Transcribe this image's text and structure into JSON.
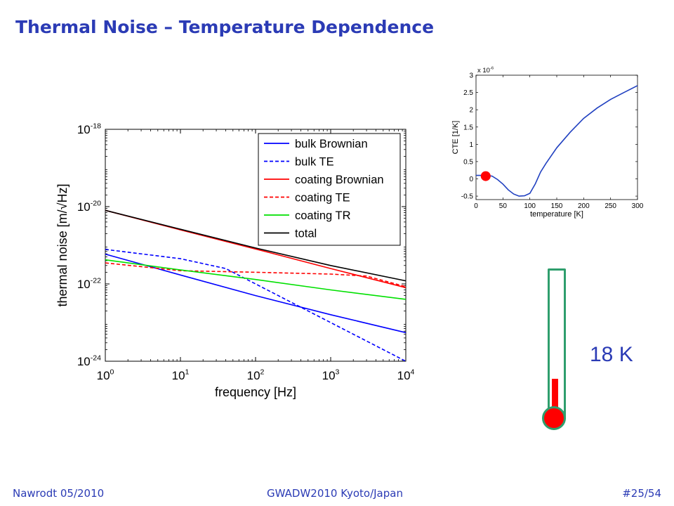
{
  "slide": {
    "title": "Thermal Noise – Temperature Dependence",
    "temperature_label": "18 K",
    "thermometer_level": 0.25,
    "footer": {
      "left": "Nawrodt 05/2010",
      "center": "GWADW2010 Kyoto/Japan",
      "right": "#25/54"
    }
  },
  "chart_data": [
    {
      "type": "line",
      "xlabel": "frequency [Hz]",
      "ylabel": "thermal noise [m/√Hz]",
      "xscale": "log",
      "yscale": "log",
      "xlim": [
        1,
        10000
      ],
      "ylim": [
        1e-24,
        1e-18
      ],
      "x_ticks": [
        {
          "base": "10",
          "exp": "0",
          "value": 1
        },
        {
          "base": "10",
          "exp": "1",
          "value": 10
        },
        {
          "base": "10",
          "exp": "2",
          "value": 100
        },
        {
          "base": "10",
          "exp": "3",
          "value": 1000
        },
        {
          "base": "10",
          "exp": "4",
          "value": 10000
        }
      ],
      "y_ticks": [
        {
          "base": "10",
          "exp": "-18",
          "value": 1e-18
        },
        {
          "base": "10",
          "exp": "-20",
          "value": 1e-20
        },
        {
          "base": "10",
          "exp": "-22",
          "value": 1e-22
        },
        {
          "base": "10",
          "exp": "-24",
          "value": 1e-24
        }
      ],
      "legend_position": "top-right",
      "grid": false,
      "series": [
        {
          "name": "bulk Brownian",
          "color": "#0000ff",
          "dash": "solid",
          "x": [
            1,
            10,
            100,
            1000,
            10000
          ],
          "y": [
            5.9e-22,
            1.7e-22,
            5e-23,
            1.6e-23,
            5.5e-24
          ]
        },
        {
          "name": "bulk TE",
          "color": "#0000ff",
          "dash": "dashed",
          "x": [
            1,
            10,
            40,
            100,
            1000,
            10000
          ],
          "y": [
            7.8e-22,
            4.5e-22,
            2.5e-22,
            1e-22,
            1e-23,
            1e-24
          ]
        },
        {
          "name": "coating Brownian",
          "color": "#ff0000",
          "dash": "solid",
          "x": [
            1,
            10,
            100,
            1000,
            10000
          ],
          "y": [
            8e-21,
            2.5e-21,
            8e-22,
            2.5e-22,
            8e-23
          ]
        },
        {
          "name": "coating TE",
          "color": "#ff0000",
          "dash": "dashed",
          "x": [
            1,
            10,
            100,
            1000,
            3000,
            10000
          ],
          "y": [
            3.5e-22,
            2.2e-22,
            2e-22,
            1.8e-22,
            1.6e-22,
            8.5e-23
          ]
        },
        {
          "name": "coating TR",
          "color": "#00e000",
          "dash": "solid",
          "x": [
            1,
            10,
            100,
            1000,
            10000
          ],
          "y": [
            4.2e-22,
            2.3e-22,
            1.3e-22,
            7e-23,
            4e-23
          ]
        },
        {
          "name": "total",
          "color": "#000000",
          "dash": "solid",
          "x": [
            1,
            10,
            100,
            1000,
            10000
          ],
          "y": [
            8e-21,
            2.6e-21,
            8.5e-22,
            3e-22,
            1.2e-22
          ]
        }
      ]
    },
    {
      "type": "line",
      "xlabel": "temperature [K]",
      "ylabel": "CTE [1/K]",
      "multiplier": {
        "base": "x 10",
        "exp": "-6"
      },
      "xlim": [
        0,
        300
      ],
      "ylim": [
        -0.6,
        3
      ],
      "x_ticks": [
        "0",
        "50",
        "100",
        "150",
        "200",
        "250",
        "300"
      ],
      "x_tick_values": [
        0,
        50,
        100,
        150,
        200,
        250,
        300
      ],
      "y_ticks": [
        "-0.5",
        "0",
        "0.5",
        "1",
        "1.5",
        "2",
        "2.5",
        "3"
      ],
      "y_tick_values": [
        -0.5,
        0,
        0.5,
        1,
        1.5,
        2,
        2.5,
        3
      ],
      "grid": false,
      "series": [
        {
          "color": "#2040c0",
          "x": [
            0,
            10,
            20,
            30,
            40,
            50,
            60,
            70,
            80,
            90,
            100,
            110,
            120,
            130,
            150,
            175,
            200,
            225,
            250,
            275,
            300
          ],
          "y": [
            0.1,
            0.1,
            0.1,
            0.08,
            -0.02,
            -0.15,
            -0.32,
            -0.44,
            -0.5,
            -0.49,
            -0.42,
            -0.15,
            0.2,
            0.45,
            0.9,
            1.35,
            1.75,
            2.05,
            2.3,
            2.5,
            2.7
          ]
        }
      ],
      "marker": {
        "x": 18,
        "y": 0.08,
        "color": "#ff0000"
      }
    }
  ]
}
